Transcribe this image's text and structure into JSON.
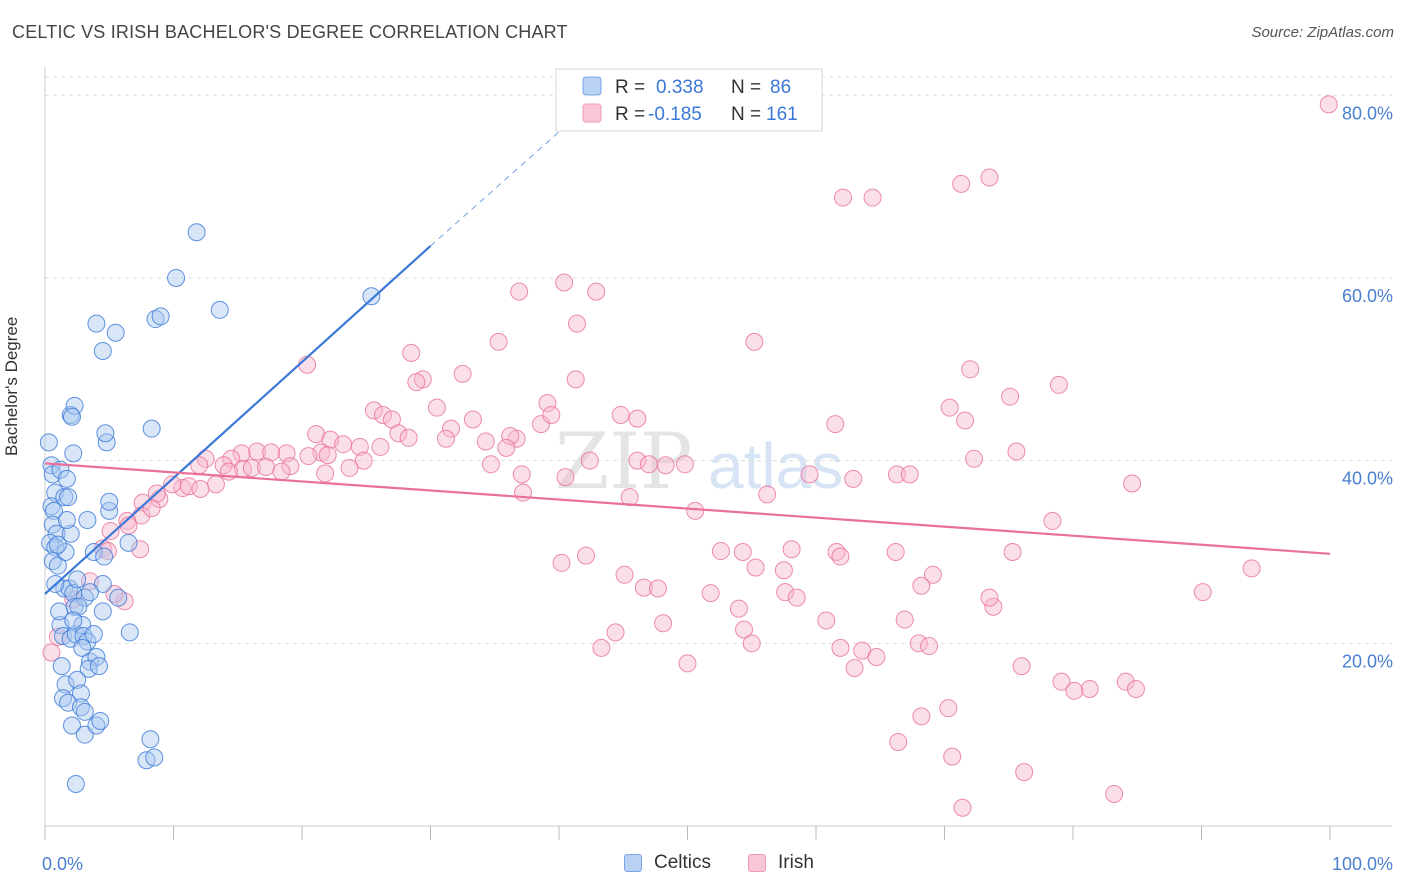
{
  "title": "CELTIC VS IRISH BACHELOR'S DEGREE CORRELATION CHART",
  "source": "Source: ZipAtlas.com",
  "watermark": {
    "zip": "ZIP",
    "atlas": "atlas"
  },
  "colors": {
    "blue": "#3b78d8",
    "blue_fill": "#a9c7f0",
    "pink": "#e8709a",
    "pink_fill": "#f6b9cd",
    "axis_text": "#4a7fd0",
    "grid": "#dddddd"
  },
  "legend_top": [
    {
      "r_label": "R =",
      "r_value": "0.338",
      "n_label": "N =",
      "n_value": "86"
    },
    {
      "r_label": "R =",
      "r_value": "-0.185",
      "n_label": "N =",
      "n_value": "161"
    }
  ],
  "legend_bottom": [
    "Celtics",
    "Irish"
  ],
  "chart_data": {
    "type": "scatter",
    "title": "CELTIC VS IRISH BACHELOR'S DEGREE CORRELATION CHART",
    "xlabel": "",
    "ylabel": "Bachelor's Degree",
    "xlim": [
      0,
      100
    ],
    "ylim": [
      0,
      82
    ],
    "x_tick_labels": [
      "0.0%",
      "100.0%"
    ],
    "y_ticks": [
      20,
      40,
      60,
      80
    ],
    "y_tick_labels": [
      "20.0%",
      "40.0%",
      "60.0%",
      "80.0%"
    ],
    "grid": true,
    "legend_position": "top-center",
    "series": [
      {
        "name": "Celtics",
        "color": "#3b78d8",
        "points": [
          [
            0.3,
            42
          ],
          [
            0.5,
            39.5
          ],
          [
            0.6,
            38.5
          ],
          [
            0.8,
            36.5
          ],
          [
            0.5,
            35
          ],
          [
            0.7,
            34.5
          ],
          [
            0.6,
            33
          ],
          [
            0.9,
            32
          ],
          [
            0.4,
            31
          ],
          [
            0.8,
            30.5
          ],
          [
            0.6,
            29
          ],
          [
            1,
            28.5
          ],
          [
            1.2,
            39
          ],
          [
            1.5,
            36
          ],
          [
            1.8,
            36
          ],
          [
            2,
            32
          ],
          [
            1.7,
            33.5
          ],
          [
            2.2,
            40.8
          ],
          [
            2,
            45
          ],
          [
            2.3,
            46
          ],
          [
            2.1,
            44.8
          ],
          [
            1.6,
            30
          ],
          [
            1.5,
            26
          ],
          [
            1.9,
            26
          ],
          [
            2.2,
            25.5
          ],
          [
            2.5,
            27
          ],
          [
            2.3,
            24
          ],
          [
            3.1,
            25
          ],
          [
            2.6,
            24
          ],
          [
            1.2,
            22
          ],
          [
            1.4,
            20.8
          ],
          [
            2,
            20.5
          ],
          [
            2.4,
            21
          ],
          [
            2.9,
            22
          ],
          [
            3,
            20.8
          ],
          [
            3.3,
            20.2
          ],
          [
            2.9,
            19.5
          ],
          [
            3.5,
            18
          ],
          [
            4,
            18.5
          ],
          [
            3.4,
            17.2
          ],
          [
            4.2,
            17.5
          ],
          [
            1.3,
            17.5
          ],
          [
            1.6,
            15.5
          ],
          [
            2.5,
            16
          ],
          [
            2.8,
            14.5
          ],
          [
            1.4,
            14
          ],
          [
            1.8,
            13.5
          ],
          [
            2.8,
            13
          ],
          [
            3.1,
            12.5
          ],
          [
            2.1,
            11
          ],
          [
            3.1,
            10
          ],
          [
            4,
            11
          ],
          [
            4.3,
            11.5
          ],
          [
            2.4,
            4.6
          ],
          [
            8.2,
            9.5
          ],
          [
            7.9,
            7.2
          ],
          [
            8.5,
            7.5
          ],
          [
            4,
            55
          ],
          [
            5.5,
            54
          ],
          [
            4.5,
            52
          ],
          [
            8.6,
            55.5
          ],
          [
            9,
            55.8
          ],
          [
            10.2,
            60
          ],
          [
            11.8,
            65
          ],
          [
            13.6,
            56.5
          ],
          [
            25.4,
            58
          ],
          [
            4.8,
            42
          ],
          [
            4.7,
            43
          ],
          [
            8.3,
            43.5
          ],
          [
            3.3,
            33.5
          ],
          [
            5,
            34.5
          ],
          [
            6.5,
            31
          ],
          [
            5,
            35.5
          ],
          [
            3.8,
            30
          ],
          [
            4.5,
            26.5
          ],
          [
            5.7,
            25
          ],
          [
            4.5,
            23.5
          ],
          [
            6.6,
            21.2
          ],
          [
            3.8,
            21
          ],
          [
            4.6,
            29.5
          ],
          [
            3.5,
            25.6
          ],
          [
            1,
            30.8
          ],
          [
            0.8,
            26.5
          ],
          [
            1.1,
            23.5
          ],
          [
            2.2,
            22.5
          ],
          [
            1.7,
            38
          ]
        ]
      },
      {
        "name": "Irish",
        "color": "#e8709a",
        "points": [
          [
            99.9,
            79
          ],
          [
            73.5,
            71
          ],
          [
            71.3,
            70.3
          ],
          [
            62.1,
            68.8
          ],
          [
            64.4,
            68.8
          ],
          [
            40.4,
            59.5
          ],
          [
            36.9,
            58.5
          ],
          [
            42.9,
            58.5
          ],
          [
            41.4,
            55
          ],
          [
            35.3,
            53
          ],
          [
            55.2,
            53
          ],
          [
            28.5,
            51.8
          ],
          [
            20.4,
            50.5
          ],
          [
            32.5,
            49.5
          ],
          [
            29.4,
            48.9
          ],
          [
            28.9,
            48.6
          ],
          [
            41.3,
            48.9
          ],
          [
            72,
            50
          ],
          [
            78.9,
            48.3
          ],
          [
            75.1,
            47
          ],
          [
            39.1,
            46.3
          ],
          [
            30.5,
            45.8
          ],
          [
            33.3,
            44.5
          ],
          [
            25.6,
            45.5
          ],
          [
            21.1,
            42.9
          ],
          [
            26.3,
            45
          ],
          [
            27,
            44.5
          ],
          [
            31.6,
            43.5
          ],
          [
            27.5,
            43
          ],
          [
            28.3,
            42.5
          ],
          [
            31.2,
            42.4
          ],
          [
            22.2,
            42.3
          ],
          [
            26.1,
            41.5
          ],
          [
            23.2,
            41.8
          ],
          [
            24.5,
            41.5
          ],
          [
            21.5,
            40.9
          ],
          [
            22,
            40.6
          ],
          [
            20.5,
            40.5
          ],
          [
            18.8,
            40.8
          ],
          [
            16.5,
            41
          ],
          [
            17.6,
            40.9
          ],
          [
            15.3,
            40.8
          ],
          [
            14.5,
            40.2
          ],
          [
            13.9,
            39.5
          ],
          [
            15.4,
            39.1
          ],
          [
            14.3,
            38.8
          ],
          [
            16.1,
            39.2
          ],
          [
            17.2,
            39.3
          ],
          [
            19.1,
            39.4
          ],
          [
            24.8,
            40
          ],
          [
            23.7,
            39.2
          ],
          [
            21.8,
            38.6
          ],
          [
            18.4,
            38.8
          ],
          [
            12.5,
            40.2
          ],
          [
            12,
            39.5
          ],
          [
            13.3,
            37.4
          ],
          [
            10.7,
            37
          ],
          [
            11.2,
            37.2
          ],
          [
            12.1,
            36.9
          ],
          [
            9.9,
            37.4
          ],
          [
            8.9,
            35.8
          ],
          [
            8.7,
            36.4
          ],
          [
            7.6,
            35.4
          ],
          [
            7.5,
            34
          ],
          [
            8.3,
            34.8
          ],
          [
            6.4,
            33.4
          ],
          [
            6.5,
            32.9
          ],
          [
            5.1,
            32.3
          ],
          [
            4.5,
            30.4
          ],
          [
            4.9,
            30.1
          ],
          [
            36.7,
            42.4
          ],
          [
            34.3,
            42.1
          ],
          [
            36.2,
            42.7
          ],
          [
            38.6,
            44
          ],
          [
            35.9,
            41.4
          ],
          [
            34.7,
            39.6
          ],
          [
            37.1,
            38.5
          ],
          [
            46.1,
            40
          ],
          [
            47,
            39.6
          ],
          [
            49.8,
            39.6
          ],
          [
            44.8,
            45
          ],
          [
            46.1,
            44.6
          ],
          [
            59.5,
            38.5
          ],
          [
            62.9,
            38
          ],
          [
            66.3,
            38.5
          ],
          [
            84.6,
            37.5
          ],
          [
            84.1,
            15.8
          ],
          [
            81.3,
            15
          ],
          [
            71.6,
            44.4
          ],
          [
            75.6,
            41
          ],
          [
            40.5,
            38.2
          ],
          [
            37.2,
            36.5
          ],
          [
            39.4,
            45
          ],
          [
            45.5,
            36
          ],
          [
            50.6,
            34.5
          ],
          [
            56.2,
            36.3
          ],
          [
            48.3,
            39.5
          ],
          [
            42.4,
            40
          ],
          [
            72.3,
            40.2
          ],
          [
            70.4,
            45.8
          ],
          [
            61.5,
            44
          ],
          [
            69.1,
            27.5
          ],
          [
            73.8,
            24
          ],
          [
            78.4,
            33.4
          ],
          [
            75.3,
            30
          ],
          [
            68.2,
            26.3
          ],
          [
            60.8,
            22.5
          ],
          [
            57.6,
            25.6
          ],
          [
            61.6,
            30
          ],
          [
            54.4,
            21.5
          ],
          [
            55.3,
            28.3
          ],
          [
            54.3,
            30
          ],
          [
            58.1,
            30.3
          ],
          [
            61.9,
            29.5
          ],
          [
            57.5,
            28
          ],
          [
            42.1,
            29.6
          ],
          [
            40.2,
            28.8
          ],
          [
            45.1,
            27.5
          ],
          [
            46.6,
            26.1
          ],
          [
            47.7,
            26
          ],
          [
            51.8,
            25.5
          ],
          [
            52.6,
            30.1
          ],
          [
            44.4,
            21.2
          ],
          [
            43.3,
            19.5
          ],
          [
            48.1,
            22.2
          ],
          [
            50,
            17.8
          ],
          [
            54,
            23.8
          ],
          [
            55,
            20
          ],
          [
            58.5,
            25
          ],
          [
            61.9,
            19.5
          ],
          [
            63.6,
            19.2
          ],
          [
            63,
            17.3
          ],
          [
            64.7,
            18.5
          ],
          [
            66.2,
            30
          ],
          [
            66.9,
            22.6
          ],
          [
            68,
            20
          ],
          [
            68.8,
            19.7
          ],
          [
            68.2,
            12
          ],
          [
            70.3,
            12.9
          ],
          [
            66.4,
            9.2
          ],
          [
            70.6,
            7.6
          ],
          [
            71.4,
            2
          ],
          [
            73.5,
            25
          ],
          [
            76,
            17.5
          ],
          [
            76.2,
            5.9
          ],
          [
            79.1,
            15.8
          ],
          [
            80.1,
            14.8
          ],
          [
            84.9,
            15
          ],
          [
            83.2,
            3.5
          ],
          [
            93.9,
            28.2
          ],
          [
            90.1,
            25.6
          ],
          [
            67.3,
            38.5
          ],
          [
            3.5,
            26.8
          ],
          [
            6.2,
            24.6
          ],
          [
            7.4,
            30.3
          ],
          [
            5.4,
            25.4
          ],
          [
            0.5,
            19
          ],
          [
            1,
            20.7
          ],
          [
            2.2,
            24.8
          ]
        ]
      }
    ],
    "trend_lines": [
      {
        "series": "Celtics",
        "from": [
          0,
          25.4
        ],
        "to": [
          30,
          63.5
        ],
        "dashed_to": [
          40.8,
          77
        ],
        "style": "solid then dashed"
      },
      {
        "series": "Irish",
        "from": [
          0,
          39.7
        ],
        "to": [
          100,
          29.8
        ],
        "style": "solid"
      }
    ]
  }
}
